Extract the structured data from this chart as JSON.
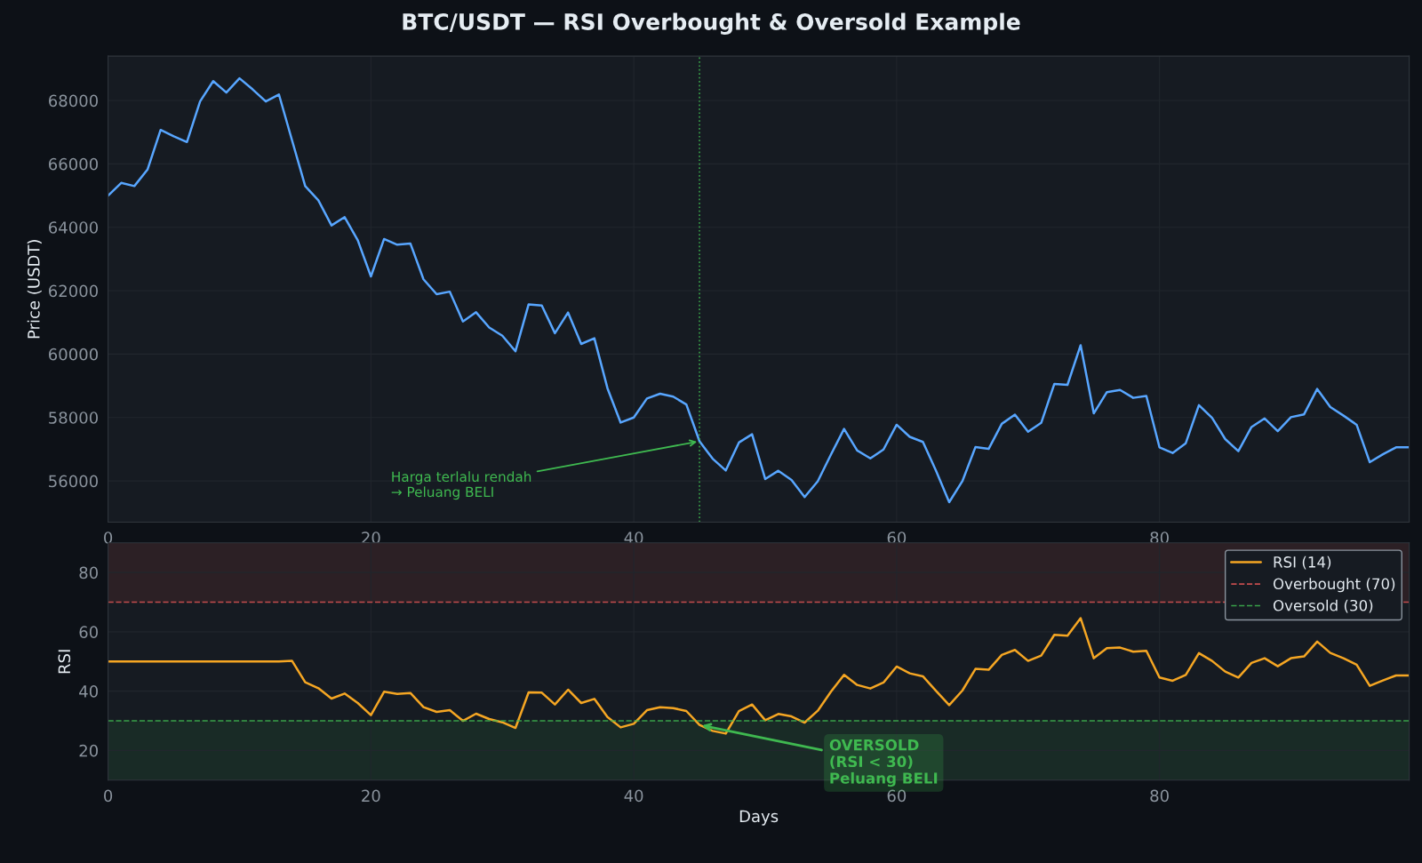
{
  "chart_data": [
    {
      "type": "line",
      "title": "BTC/USDT — RSI Overbought & Oversold Example",
      "ylabel": "Price (USDT)",
      "x": [
        0,
        1,
        2,
        3,
        4,
        5,
        6,
        7,
        8,
        9,
        10,
        11,
        12,
        13,
        14,
        15,
        16,
        17,
        18,
        19,
        20,
        21,
        22,
        23,
        24,
        25,
        26,
        27,
        28,
        29,
        30,
        31,
        32,
        33,
        34,
        35,
        36,
        37,
        38,
        39,
        40,
        41,
        42,
        43,
        44,
        45,
        46,
        47,
        48,
        49,
        50,
        51,
        52,
        53,
        54,
        55,
        56,
        57,
        58,
        59,
        60,
        61,
        62,
        63,
        64,
        65,
        66,
        67,
        68,
        69,
        70,
        71,
        72,
        73,
        74,
        75,
        76,
        77,
        78,
        79,
        80,
        81,
        82,
        83,
        84,
        85,
        86,
        87,
        88,
        89,
        90,
        91,
        92,
        93,
        94,
        95,
        96,
        97,
        98,
        99
      ],
      "series": [
        {
          "color": "#58a6ff",
          "values": [
            65000,
            65400,
            65300,
            65820,
            67070,
            66870,
            66690,
            67970,
            68610,
            68250,
            68700,
            68350,
            67970,
            68190,
            66740,
            65300,
            64850,
            64060,
            64320,
            63590,
            62450,
            63630,
            63450,
            63490,
            62360,
            61890,
            61970,
            61030,
            61320,
            60840,
            60580,
            60090,
            61570,
            61530,
            60660,
            61310,
            60320,
            60500,
            58920,
            57840,
            58000,
            58600,
            58750,
            58660,
            58410,
            57250,
            56700,
            56330,
            57210,
            57470,
            56060,
            56320,
            56030,
            55490,
            55990,
            56830,
            57640,
            56960,
            56710,
            56990,
            57770,
            57390,
            57230,
            56320,
            55330,
            55990,
            57070,
            57010,
            57800,
            58090,
            57550,
            57830,
            59060,
            59030,
            60280,
            58130,
            58800,
            58870,
            58620,
            58680,
            57060,
            56880,
            57190,
            58390,
            57990,
            57320,
            56940,
            57700,
            57970,
            57570,
            58010,
            58100,
            58900,
            58330,
            58060,
            57770,
            56590,
            56840,
            57060,
            57060
          ]
        }
      ],
      "xlim": [
        0,
        99
      ],
      "xticks": [
        0,
        20,
        40,
        60,
        80
      ],
      "ylim": [
        54700,
        69400
      ],
      "yticks": [
        56000,
        58000,
        60000,
        62000,
        64000,
        66000,
        68000
      ],
      "ref_lines": [
        {
          "axis": "x",
          "value": 45,
          "color": "#3fb950",
          "line_style": "dotted"
        }
      ],
      "annotations": [
        {
          "text": "Harga terlalu rendah\n→ Peluang BELI",
          "x": 45,
          "y": 57250
        }
      ],
      "grid": true,
      "legend": false
    },
    {
      "type": "line",
      "xlabel": "Days",
      "ylabel": "RSI",
      "x": [
        0,
        1,
        2,
        3,
        4,
        5,
        6,
        7,
        8,
        9,
        10,
        11,
        12,
        13,
        14,
        15,
        16,
        17,
        18,
        19,
        20,
        21,
        22,
        23,
        24,
        25,
        26,
        27,
        28,
        29,
        30,
        31,
        32,
        33,
        34,
        35,
        36,
        37,
        38,
        39,
        40,
        41,
        42,
        43,
        44,
        45,
        46,
        47,
        48,
        49,
        50,
        51,
        52,
        53,
        54,
        55,
        56,
        57,
        58,
        59,
        60,
        61,
        62,
        63,
        64,
        65,
        66,
        67,
        68,
        69,
        70,
        71,
        72,
        73,
        74,
        75,
        76,
        77,
        78,
        79,
        80,
        81,
        82,
        83,
        84,
        85,
        86,
        87,
        88,
        89,
        90,
        91,
        92,
        93,
        94,
        95,
        96,
        97,
        98,
        99
      ],
      "series": [
        {
          "name": "RSI (14)",
          "color": "#f5a623",
          "values": [
            50,
            50,
            50,
            50,
            50,
            50,
            50,
            50,
            50,
            50,
            50,
            50,
            50,
            50,
            50.2,
            43.0,
            41.0,
            37.5,
            39.2,
            36.0,
            31.9,
            39.8,
            39.1,
            39.4,
            34.6,
            33.0,
            33.6,
            30.0,
            32.4,
            30.6,
            29.5,
            27.6,
            39.6,
            39.5,
            35.5,
            40.5,
            36.0,
            37.4,
            31.3,
            27.8,
            29.0,
            33.6,
            34.6,
            34.3,
            33.3,
            28.6,
            26.6,
            25.7,
            33.3,
            35.5,
            30.2,
            32.3,
            31.5,
            29.4,
            33.4,
            39.8,
            45.5,
            42.1,
            40.9,
            42.9,
            48.3,
            46.0,
            45.0,
            40.1,
            35.3,
            40.2,
            47.5,
            47.2,
            52.2,
            53.9,
            50.2,
            52.0,
            59.0,
            58.7,
            64.6,
            51.1,
            54.5,
            54.7,
            53.3,
            53.6,
            44.6,
            43.5,
            45.5,
            52.8,
            50.2,
            46.6,
            44.6,
            49.5,
            51.1,
            48.4,
            51.1,
            51.7,
            56.7,
            52.9,
            51.1,
            48.9,
            41.8,
            43.6,
            45.3,
            45.3
          ]
        }
      ],
      "xlim": [
        0,
        99
      ],
      "xticks": [
        0,
        20,
        40,
        60,
        80
      ],
      "ylim": [
        10,
        90
      ],
      "yticks": [
        20,
        40,
        60,
        80
      ],
      "ref_lines": [
        {
          "axis": "y",
          "value": 70,
          "label": "Overbought (70)",
          "color": "#e05555",
          "line_style": "dashed"
        },
        {
          "axis": "y",
          "value": 30,
          "label": "Oversold (30)",
          "color": "#3fb950",
          "line_style": "dashed"
        }
      ],
      "bands": [
        {
          "axis": "y",
          "from": 70,
          "to": 90,
          "color": "#f85149"
        },
        {
          "axis": "y",
          "from": 10,
          "to": 30,
          "color": "#3fb950"
        }
      ],
      "annotations": [
        {
          "text": "OVERSOLD\n(RSI < 30)\nPeluang BELI",
          "x": 45,
          "y": 28.6
        }
      ],
      "grid": true,
      "legend": "top right"
    }
  ]
}
